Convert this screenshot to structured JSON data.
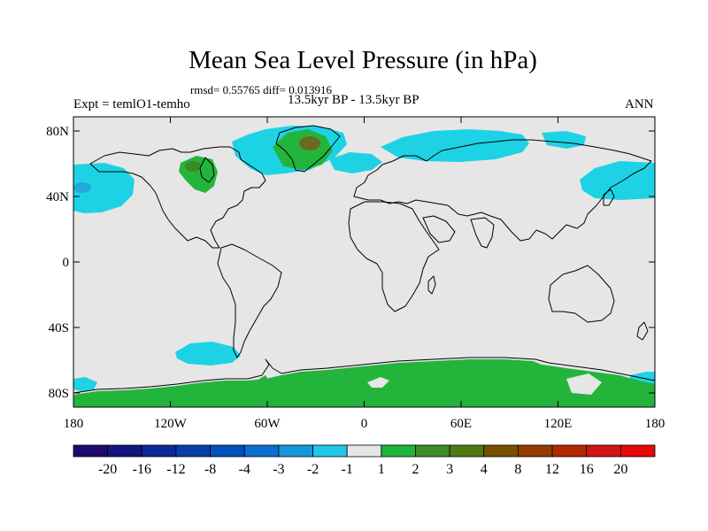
{
  "title": "Mean Sea Level Pressure (in hPa)",
  "stats": "rmsd= 0.55765 diff= 0.013916",
  "left_label": "Expt = temlO1-temho",
  "center_label": "13.5kyr BP - 13.5kyr BP",
  "right_label": "ANN",
  "lat_ticks": [
    "80N",
    "40N",
    "0",
    "40S",
    "80S"
  ],
  "lon_ticks": [
    "180",
    "120W",
    "60W",
    "0",
    "60E",
    "120E",
    "180"
  ],
  "colorbar": {
    "labels": [
      "-20",
      "-16",
      "-12",
      "-8",
      "-4",
      "-3",
      "-2",
      "-1",
      "1",
      "2",
      "3",
      "4",
      "8",
      "12",
      "16",
      "20"
    ],
    "colors": [
      "#1e0a6e",
      "#14147f",
      "#0a2896",
      "#0a3ca8",
      "#0050be",
      "#0a6ed2",
      "#1496dc",
      "#1ec8e6",
      "#e6e6e6",
      "#1eb43c",
      "#3c8c28",
      "#507814",
      "#785000",
      "#963c00",
      "#b42800",
      "#d21414",
      "#e60a0a"
    ]
  },
  "colors": {
    "background": "#e6e6e6",
    "cyan": "#1ed2e6",
    "light_blue": "#23a8d8",
    "green": "#23b43c",
    "dark_green": "#3a8a24",
    "olive": "#6b6a1e"
  }
}
